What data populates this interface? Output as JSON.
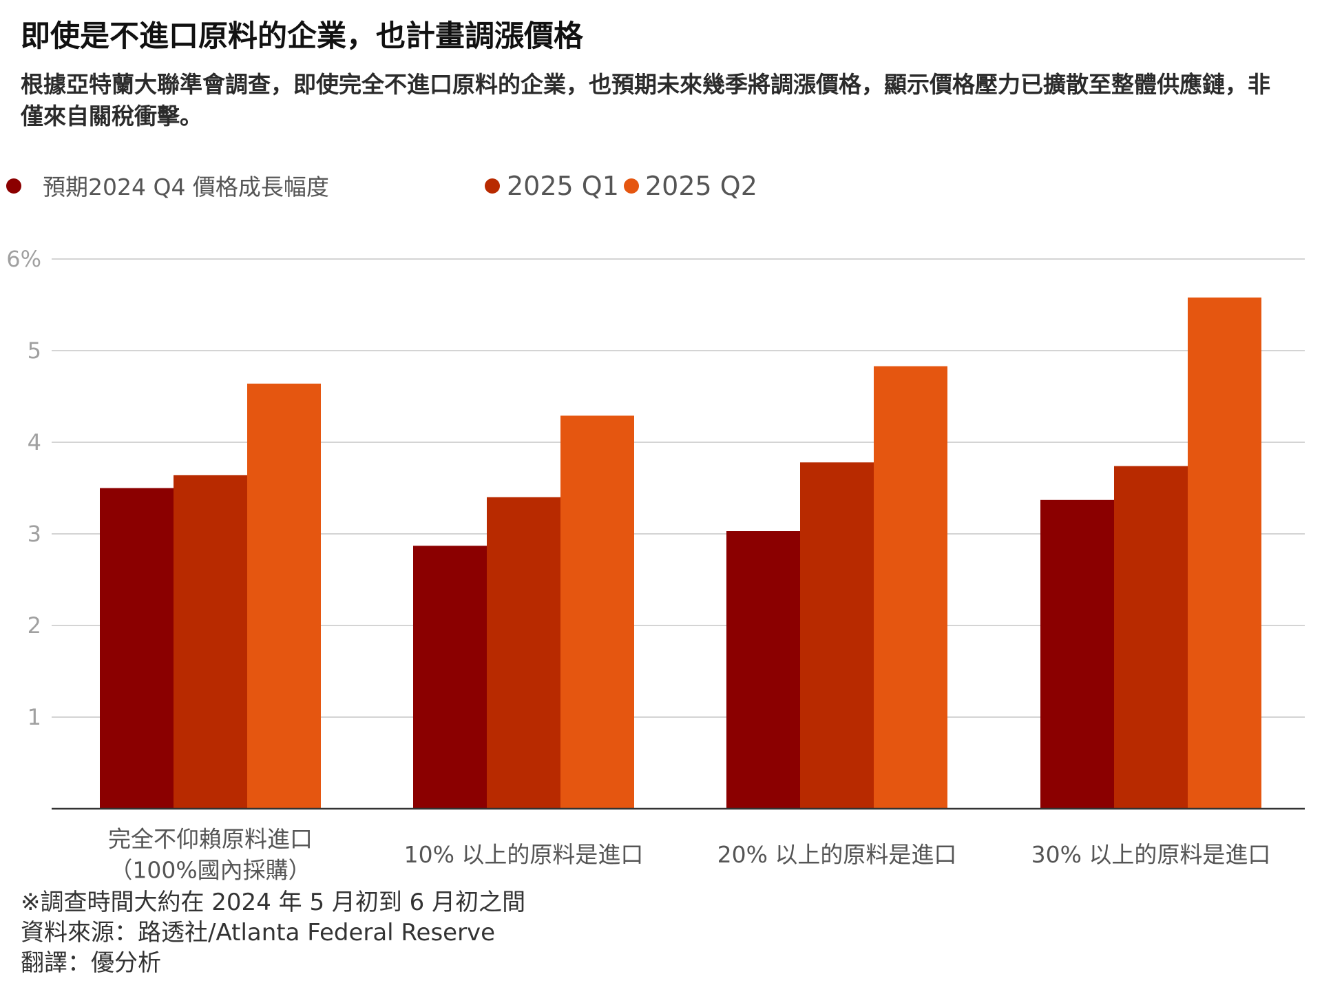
{
  "chart_data": {
    "type": "bar",
    "title": "即使是不進口原料的企業，也計畫調漲價格",
    "subtitle": "根據亞特蘭大聯準會調查，即使完全不進口原料的企業，也預期未來幾季將調漲價格，顯示價格壓力已擴散至整體供應鏈，非僅來自關稅衝擊。",
    "categories": [
      [
        "完全不仰賴原料進口",
        "（100%國內採購）"
      ],
      [
        "10% 以上的原料是進口"
      ],
      [
        "20% 以上的原料是進口"
      ],
      [
        "30% 以上的原料是進口"
      ]
    ],
    "series": [
      {
        "name": "預期2024 Q4 價格成長幅度",
        "color": "#8b0000",
        "values": [
          3.5,
          2.87,
          3.03,
          3.37
        ]
      },
      {
        "name": "2025 Q1",
        "color": "#b82a00",
        "values": [
          3.64,
          3.4,
          3.78,
          3.74
        ]
      },
      {
        "name": "2025 Q2",
        "color": "#e55610",
        "values": [
          4.64,
          4.29,
          4.83,
          5.58
        ]
      }
    ],
    "yticks": [
      1,
      2,
      3,
      4,
      5,
      6
    ],
    "ytick_labels": [
      "1",
      "2",
      "3",
      "4",
      "5",
      "6%"
    ],
    "ylim": [
      0,
      6
    ],
    "grid": true,
    "legend_position": "top-left",
    "xlabel": "",
    "ylabel": ""
  },
  "footnotes": {
    "survey_period": "※調查時間大約在 2024 年 5 月初到 6 月初之間",
    "source": "資料來源：路透社/Atlanta Federal Reserve",
    "translation": "翻譯：優分析"
  },
  "colors": {
    "grid": "#d4d4d4",
    "axis": "#333333",
    "tick_label": "#a0a0a0",
    "legend_text": "#555555",
    "category_label": "#555555"
  }
}
